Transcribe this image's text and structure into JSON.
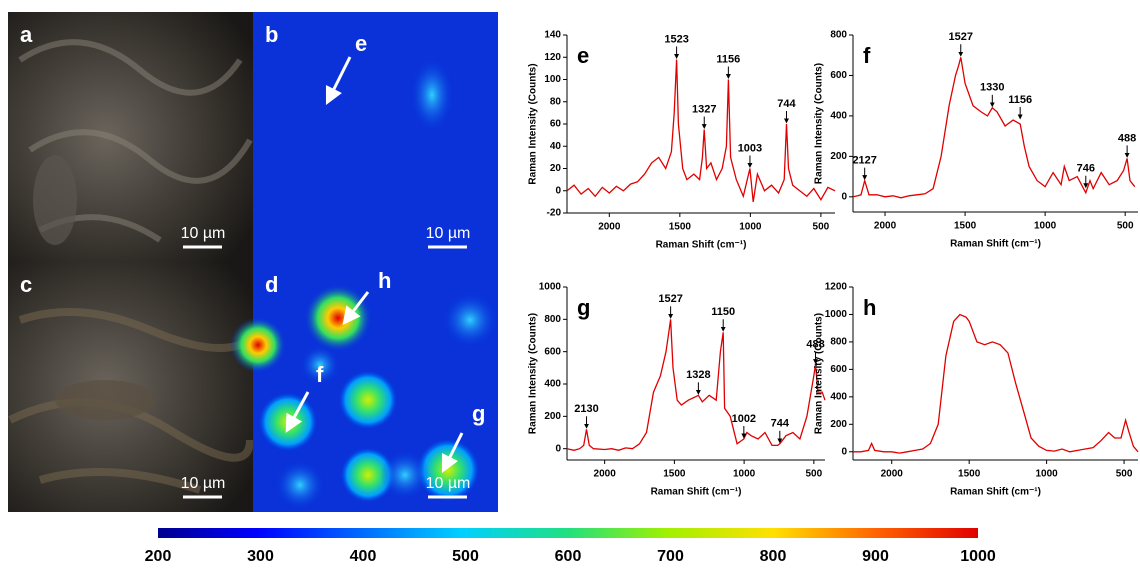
{
  "panels": [
    {
      "label": "a",
      "scale_bar": "10 µm"
    },
    {
      "label": "b",
      "scale_bar": "10 µm",
      "arrows": [
        "e"
      ]
    },
    {
      "label": "c",
      "scale_bar": "10 µm"
    },
    {
      "label": "d",
      "scale_bar": "10 µm",
      "arrows": [
        "h",
        "f",
        "g"
      ]
    }
  ],
  "colorbar": {
    "lim": [
      200,
      1000
    ],
    "ticks": [
      200,
      300,
      400,
      500,
      600,
      700,
      800,
      900,
      1000
    ]
  },
  "chart_data": [
    {
      "type": "line",
      "label": "e",
      "color": "#e00000",
      "y_label": "Raman Intensity (Counts)",
      "x_label": "Raman Shift (cm⁻¹)",
      "xlim": [
        2300,
        400
      ],
      "xticks": [
        2000,
        1500,
        1000,
        500
      ],
      "ylim": [
        -20,
        140
      ],
      "yticks": [
        -20,
        0,
        20,
        40,
        60,
        80,
        100,
        120,
        140
      ],
      "x": [
        2300,
        2250,
        2200,
        2150,
        2100,
        2050,
        2000,
        1950,
        1900,
        1850,
        1800,
        1750,
        1700,
        1650,
        1600,
        1560,
        1540,
        1523,
        1510,
        1480,
        1450,
        1400,
        1360,
        1340,
        1327,
        1310,
        1280,
        1240,
        1200,
        1170,
        1156,
        1140,
        1100,
        1050,
        1003,
        980,
        950,
        900,
        850,
        800,
        760,
        744,
        730,
        700,
        650,
        600,
        550,
        500,
        450,
        400
      ],
      "values": [
        0,
        5,
        -3,
        2,
        -5,
        3,
        -2,
        4,
        0,
        6,
        8,
        15,
        25,
        30,
        20,
        35,
        70,
        118,
        60,
        20,
        10,
        15,
        10,
        30,
        55,
        20,
        25,
        10,
        20,
        40,
        100,
        30,
        10,
        -5,
        20,
        -10,
        15,
        0,
        5,
        -2,
        10,
        60,
        20,
        5,
        0,
        -5,
        2,
        -8,
        3,
        0
      ],
      "annotations": [
        {
          "text": "1523",
          "x": 1523,
          "y": 118
        },
        {
          "text": "1327",
          "x": 1327,
          "y": 55
        },
        {
          "text": "1156",
          "x": 1156,
          "y": 100
        },
        {
          "text": "1003",
          "x": 1003,
          "y": 20
        },
        {
          "text": "744",
          "x": 744,
          "y": 60
        }
      ]
    },
    {
      "type": "line",
      "label": "f",
      "color": "#e00000",
      "y_label": "Raman Intensity (Counts)",
      "x_label": "Raman Shift (cm⁻¹)",
      "xlim": [
        2200,
        420
      ],
      "xticks": [
        2000,
        1500,
        1000,
        500
      ],
      "ylim": [
        -75,
        800
      ],
      "yticks": [
        0,
        200,
        400,
        600,
        800
      ],
      "x": [
        2200,
        2170,
        2150,
        2127,
        2100,
        2050,
        2000,
        1950,
        1900,
        1850,
        1800,
        1750,
        1700,
        1650,
        1600,
        1560,
        1540,
        1527,
        1500,
        1450,
        1400,
        1360,
        1330,
        1300,
        1250,
        1200,
        1156,
        1130,
        1100,
        1050,
        1000,
        950,
        900,
        880,
        850,
        800,
        760,
        746,
        720,
        700,
        650,
        600,
        550,
        510,
        488,
        470,
        440
      ],
      "values": [
        0,
        5,
        10,
        80,
        10,
        10,
        0,
        5,
        -5,
        5,
        10,
        15,
        40,
        200,
        450,
        600,
        650,
        690,
        560,
        450,
        420,
        400,
        440,
        420,
        350,
        380,
        360,
        250,
        150,
        80,
        50,
        120,
        60,
        150,
        80,
        100,
        40,
        20,
        80,
        40,
        120,
        60,
        80,
        130,
        190,
        80,
        50
      ],
      "annotations": [
        {
          "text": "2127",
          "x": 2127,
          "y": 80
        },
        {
          "text": "1527",
          "x": 1527,
          "y": 690
        },
        {
          "text": "1330",
          "x": 1330,
          "y": 440
        },
        {
          "text": "1156",
          "x": 1156,
          "y": 380
        },
        {
          "text": "746",
          "x": 746,
          "y": 40
        },
        {
          "text": "488",
          "x": 488,
          "y": 190
        }
      ]
    },
    {
      "type": "line",
      "label": "g",
      "color": "#e00000",
      "y_label": "Raman Intensity (Counts)",
      "x_label": "Raman Shift (cm⁻¹)",
      "xlim": [
        2270,
        420
      ],
      "xticks": [
        2000,
        1500,
        1000,
        500
      ],
      "ylim": [
        -70,
        1000
      ],
      "yticks": [
        0,
        200,
        400,
        600,
        800,
        1000
      ],
      "x": [
        2270,
        2220,
        2180,
        2150,
        2130,
        2110,
        2080,
        2000,
        1950,
        1900,
        1850,
        1800,
        1750,
        1700,
        1650,
        1600,
        1560,
        1540,
        1527,
        1510,
        1480,
        1450,
        1400,
        1350,
        1328,
        1300,
        1250,
        1200,
        1170,
        1150,
        1140,
        1100,
        1050,
        1002,
        980,
        950,
        900,
        850,
        800,
        760,
        744,
        700,
        650,
        600,
        550,
        500,
        488,
        470,
        440,
        420
      ],
      "values": [
        0,
        -10,
        0,
        20,
        120,
        20,
        0,
        -5,
        0,
        -10,
        5,
        0,
        30,
        100,
        350,
        450,
        600,
        720,
        800,
        500,
        300,
        270,
        300,
        320,
        330,
        290,
        330,
        300,
        600,
        720,
        250,
        200,
        30,
        60,
        100,
        80,
        60,
        100,
        20,
        20,
        30,
        80,
        100,
        60,
        200,
        450,
        520,
        350,
        350,
        300
      ],
      "annotations": [
        {
          "text": "2130",
          "x": 2130,
          "y": 120
        },
        {
          "text": "1527",
          "x": 1527,
          "y": 800
        },
        {
          "text": "1328",
          "x": 1328,
          "y": 330
        },
        {
          "text": "1150",
          "x": 1150,
          "y": 720
        },
        {
          "text": "1002",
          "x": 1002,
          "y": 60
        },
        {
          "text": "744",
          "x": 744,
          "y": 30
        },
        {
          "text": "488",
          "x": 488,
          "y": 520
        }
      ]
    },
    {
      "type": "line",
      "label": "h",
      "color": "#e00000",
      "y_label": "Raman Intensity (Counts)",
      "x_label": "Raman Shift (cm⁻¹)",
      "xlim": [
        2250,
        410
      ],
      "xticks": [
        2000,
        1500,
        1000,
        500
      ],
      "ylim": [
        -60,
        1200
      ],
      "yticks": [
        0,
        200,
        400,
        600,
        800,
        1000,
        1200
      ],
      "x": [
        2250,
        2200,
        2150,
        2130,
        2110,
        2050,
        2000,
        1950,
        1900,
        1850,
        1800,
        1750,
        1700,
        1650,
        1600,
        1560,
        1520,
        1500,
        1450,
        1400,
        1350,
        1300,
        1250,
        1200,
        1150,
        1100,
        1050,
        1000,
        950,
        900,
        850,
        800,
        750,
        700,
        650,
        600,
        560,
        520,
        490,
        470,
        440,
        410
      ],
      "values": [
        0,
        0,
        10,
        60,
        10,
        0,
        0,
        -10,
        0,
        10,
        20,
        60,
        200,
        700,
        950,
        1000,
        980,
        950,
        800,
        780,
        800,
        780,
        720,
        500,
        300,
        100,
        40,
        10,
        5,
        20,
        0,
        10,
        20,
        30,
        80,
        140,
        100,
        100,
        230,
        150,
        40,
        0
      ],
      "annotations": []
    }
  ]
}
